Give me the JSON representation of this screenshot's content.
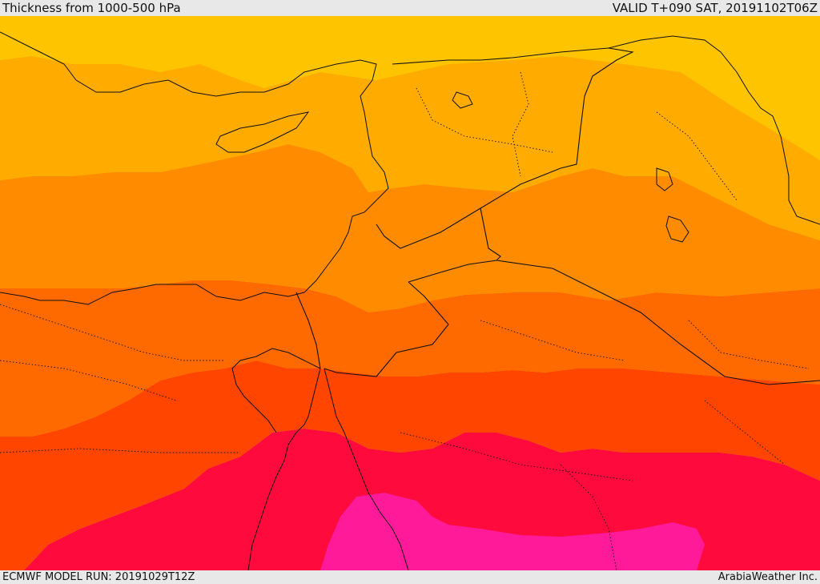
{
  "header": {
    "title": "Thickness from 1000-500 hPa",
    "valid": "VALID T+090 SAT, 20191102T06Z"
  },
  "footer": {
    "model_run": "ECMWF MODEL RUN: 20191029T12Z",
    "credit": "ArabiaWeather Inc."
  },
  "map": {
    "field": "1000-500 hPa thickness",
    "colors": {
      "band_1": "#ffe000",
      "band_2": "#ffc400",
      "band_3": "#ffab00",
      "band_4": "#ff8c00",
      "band_5": "#ff6a00",
      "band_6": "#ff4500",
      "band_7": "#ff0a3c",
      "band_8": "#ff1a9a"
    }
  }
}
